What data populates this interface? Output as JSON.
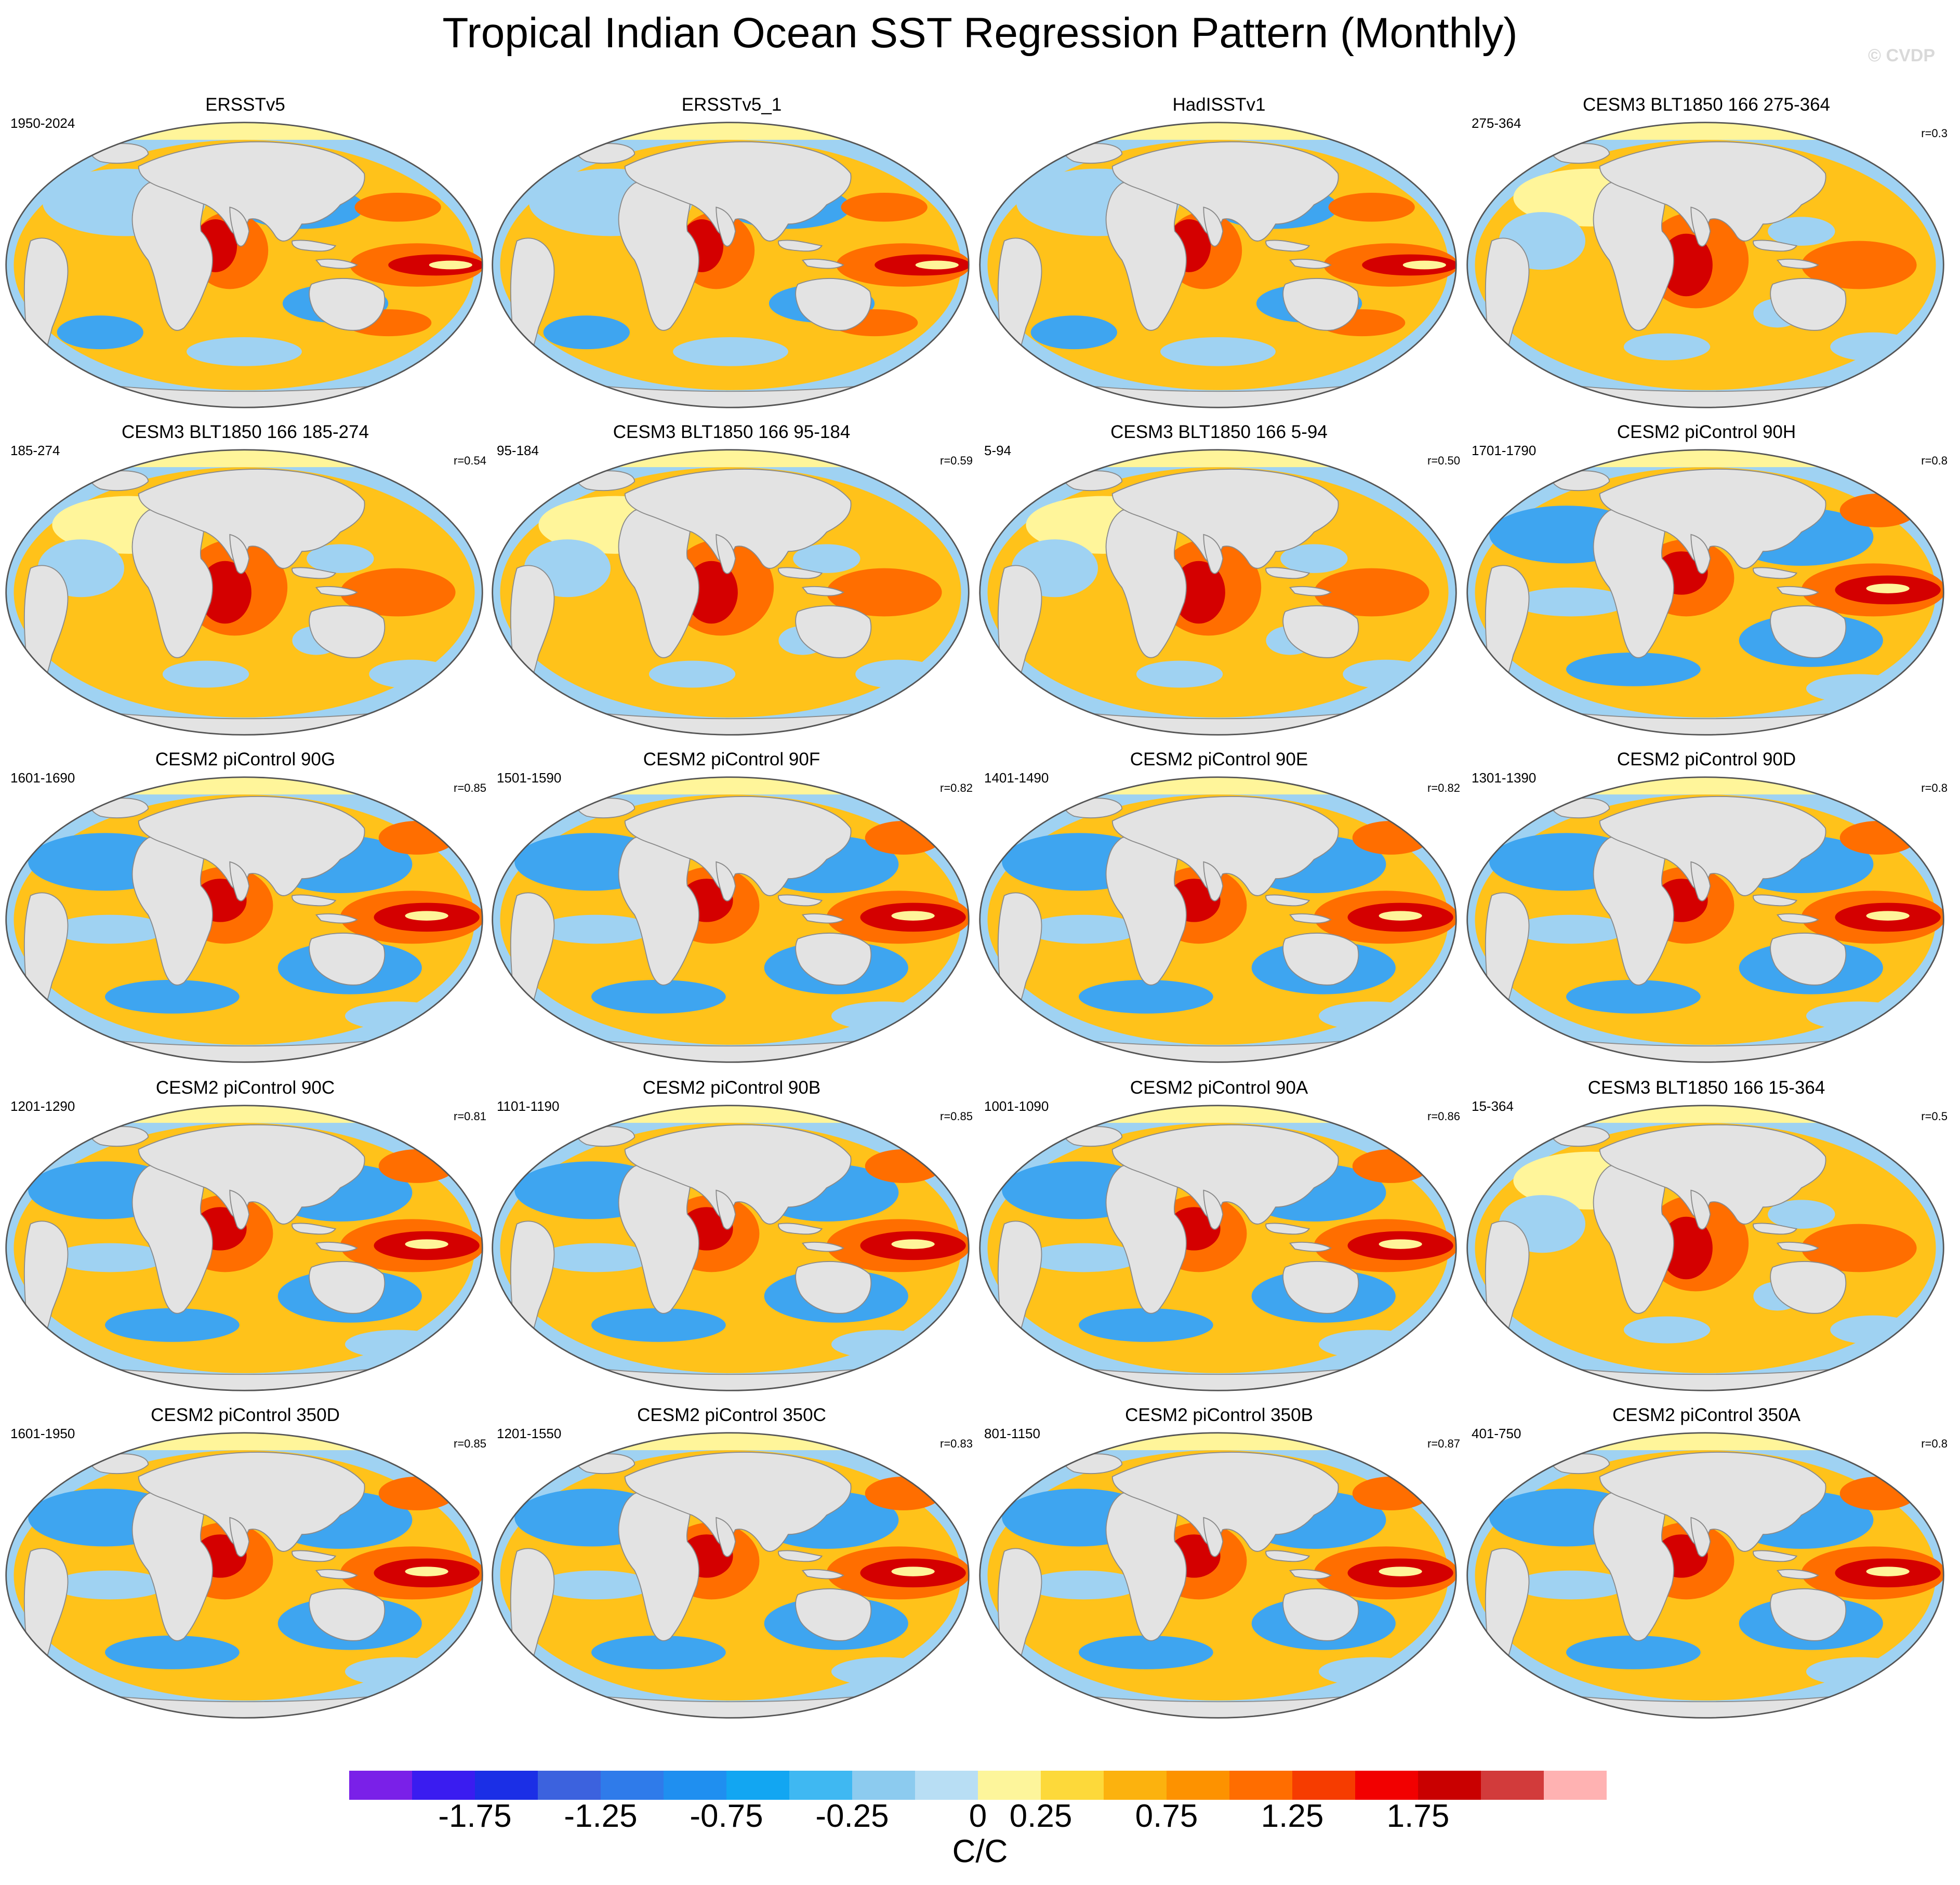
{
  "title": "Tropical Indian Ocean SST Regression Pattern (Monthly)",
  "watermark": "© CVDP",
  "colors": {
    "land": "#e3e3e3",
    "coast": "#8a8a8a",
    "pos_hi": "#d40000",
    "pos_mid": "#ff6e00",
    "pos_lo": "#ffc21a",
    "neg_lo": "#9fd2f2",
    "neg_mid": "#3ea5f0",
    "neg_hi": "#1e5fd9",
    "near_zero": "#fff59a"
  },
  "panels": [
    {
      "name": "ERSSTv5",
      "years": "1950-2024",
      "r": "",
      "pattern": "obs"
    },
    {
      "name": "ERSSTv5_1",
      "years": "",
      "r": "",
      "pattern": "obs"
    },
    {
      "name": "HadISSTv1",
      "years": "",
      "r": "",
      "pattern": "obs"
    },
    {
      "name": "CESM3 BLT1850 166 275-364",
      "years": "275-364",
      "r": "r=0.3",
      "pattern": "cesm3"
    },
    {
      "name": "CESM3 BLT1850 166 185-274",
      "years": "185-274",
      "r": "r=0.54",
      "pattern": "cesm3"
    },
    {
      "name": "CESM3 BLT1850 166 95-184",
      "years": "95-184",
      "r": "r=0.59",
      "pattern": "cesm3"
    },
    {
      "name": "CESM3 BLT1850 166 5-94",
      "years": "5-94",
      "r": "r=0.50",
      "pattern": "cesm3"
    },
    {
      "name": "CESM2 piControl 90H",
      "years": "1701-1790",
      "r": "r=0.8",
      "pattern": "cesm2"
    },
    {
      "name": "CESM2 piControl 90G",
      "years": "1601-1690",
      "r": "r=0.85",
      "pattern": "cesm2"
    },
    {
      "name": "CESM2 piControl 90F",
      "years": "1501-1590",
      "r": "r=0.82",
      "pattern": "cesm2"
    },
    {
      "name": "CESM2 piControl 90E",
      "years": "1401-1490",
      "r": "r=0.82",
      "pattern": "cesm2"
    },
    {
      "name": "CESM2 piControl 90D",
      "years": "1301-1390",
      "r": "r=0.8",
      "pattern": "cesm2"
    },
    {
      "name": "CESM2 piControl 90C",
      "years": "1201-1290",
      "r": "r=0.81",
      "pattern": "cesm2"
    },
    {
      "name": "CESM2 piControl 90B",
      "years": "1101-1190",
      "r": "r=0.85",
      "pattern": "cesm2"
    },
    {
      "name": "CESM2 piControl 90A",
      "years": "1001-1090",
      "r": "r=0.86",
      "pattern": "cesm2"
    },
    {
      "name": "CESM3 BLT1850 166 15-364",
      "years": "15-364",
      "r": "r=0.5",
      "pattern": "cesm3"
    },
    {
      "name": "CESM2 piControl 350D",
      "years": "1601-1950",
      "r": "r=0.85",
      "pattern": "cesm2"
    },
    {
      "name": "CESM2 piControl 350C",
      "years": "1201-1550",
      "r": "r=0.83",
      "pattern": "cesm2"
    },
    {
      "name": "CESM2 piControl 350B",
      "years": "801-1150",
      "r": "r=0.87",
      "pattern": "cesm2"
    },
    {
      "name": "CESM2 piControl 350A",
      "years": "401-750",
      "r": "r=0.8",
      "pattern": "cesm2"
    }
  ],
  "colorbar": {
    "colors": [
      "#7a20e8",
      "#3a1cf0",
      "#1b2fe6",
      "#3c62de",
      "#2f7bea",
      "#1f8ff0",
      "#12a6f2",
      "#3fb8f2",
      "#8ccbef",
      "#b8def4",
      "#fdf59b",
      "#fdd93a",
      "#fcb20e",
      "#fd9200",
      "#ff6d00",
      "#f63c00",
      "#f20000",
      "#c90000",
      "#d23b3b",
      "#ffb2b2"
    ],
    "tick_labels": [
      "-1.75",
      "-1.25",
      "-0.75",
      "-0.25",
      "0",
      "0.25",
      "0.75",
      "1.25",
      "1.75"
    ],
    "units": "C/C"
  }
}
